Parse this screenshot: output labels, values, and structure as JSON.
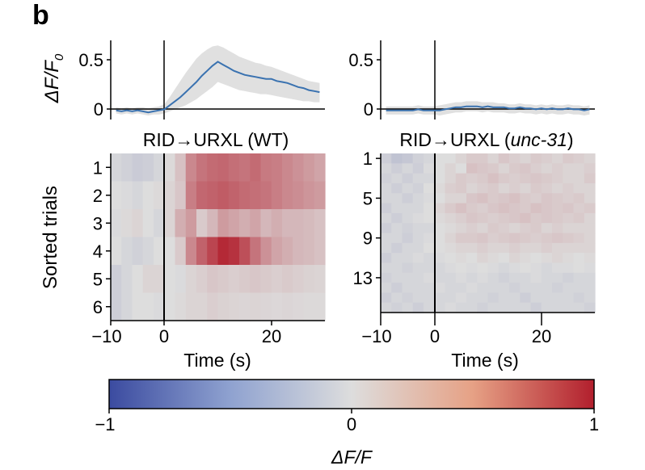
{
  "panel_label": "b",
  "chart_data": [
    {
      "type": "line",
      "panel": "trace-wt",
      "ylabel_main": "ΔF/F",
      "ylabel_sub": "0",
      "yticks": [
        "0",
        "0.5"
      ],
      "ylim": [
        -0.1,
        0.68
      ],
      "xlim": [
        -10,
        30
      ],
      "x": [
        -9,
        -8,
        -7,
        -6,
        -5,
        -4,
        -3,
        -2,
        -1,
        0,
        1,
        2,
        3,
        4,
        5,
        6,
        7,
        8,
        9,
        10,
        11,
        12,
        13,
        14,
        15,
        16,
        17,
        18,
        19,
        20,
        21,
        22,
        23,
        24,
        25,
        26,
        27,
        28,
        29
      ],
      "series": [
        {
          "name": "mean",
          "values": [
            -0.01,
            -0.02,
            -0.01,
            -0.02,
            -0.01,
            -0.02,
            -0.03,
            -0.02,
            -0.01,
            0.0,
            0.04,
            0.08,
            0.12,
            0.17,
            0.22,
            0.27,
            0.33,
            0.38,
            0.43,
            0.47,
            0.44,
            0.41,
            0.38,
            0.36,
            0.34,
            0.33,
            0.32,
            0.31,
            0.3,
            0.3,
            0.28,
            0.27,
            0.26,
            0.24,
            0.22,
            0.21,
            0.19,
            0.18,
            0.17
          ]
        },
        {
          "name": "upper",
          "values": [
            0.02,
            0.01,
            0.02,
            0.01,
            0.02,
            0.02,
            0.01,
            0.02,
            0.03,
            0.05,
            0.12,
            0.2,
            0.28,
            0.36,
            0.43,
            0.5,
            0.55,
            0.59,
            0.62,
            0.63,
            0.61,
            0.58,
            0.55,
            0.52,
            0.5,
            0.48,
            0.46,
            0.45,
            0.43,
            0.42,
            0.4,
            0.38,
            0.36,
            0.34,
            0.32,
            0.3,
            0.28,
            0.27,
            0.26
          ]
        },
        {
          "name": "lower",
          "values": [
            -0.04,
            -0.05,
            -0.04,
            -0.05,
            -0.04,
            -0.05,
            -0.06,
            -0.05,
            -0.05,
            -0.04,
            -0.02,
            0.0,
            0.02,
            0.04,
            0.07,
            0.1,
            0.14,
            0.18,
            0.22,
            0.27,
            0.25,
            0.23,
            0.21,
            0.19,
            0.18,
            0.17,
            0.16,
            0.15,
            0.15,
            0.14,
            0.13,
            0.12,
            0.11,
            0.1,
            0.09,
            0.08,
            0.08,
            0.07,
            0.07
          ]
        }
      ]
    },
    {
      "type": "line",
      "panel": "trace-unc31",
      "yticks": [
        "0",
        "0.5"
      ],
      "ylim": [
        -0.1,
        0.68
      ],
      "xlim": [
        -10,
        30
      ],
      "x": [
        -9,
        -8,
        -7,
        -6,
        -5,
        -4,
        -3,
        -2,
        -1,
        0,
        1,
        2,
        3,
        4,
        5,
        6,
        7,
        8,
        9,
        10,
        11,
        12,
        13,
        14,
        15,
        16,
        17,
        18,
        19,
        20,
        21,
        22,
        23,
        24,
        25,
        26,
        27,
        28,
        29
      ],
      "series": [
        {
          "name": "mean",
          "values": [
            -0.01,
            -0.01,
            -0.01,
            -0.01,
            -0.01,
            -0.01,
            0.0,
            -0.01,
            -0.01,
            -0.01,
            -0.01,
            0.0,
            0.01,
            0.02,
            0.02,
            0.03,
            0.03,
            0.03,
            0.02,
            0.03,
            0.02,
            0.02,
            0.02,
            0.01,
            0.01,
            0.02,
            0.01,
            0.01,
            0.0,
            0.01,
            0.0,
            0.01,
            0.0,
            0.0,
            0.01,
            0.0,
            0.0,
            -0.01,
            0.0
          ]
        },
        {
          "name": "upper",
          "values": [
            0.03,
            0.03,
            0.03,
            0.03,
            0.03,
            0.03,
            0.04,
            0.03,
            0.03,
            0.03,
            0.04,
            0.05,
            0.06,
            0.07,
            0.07,
            0.08,
            0.08,
            0.08,
            0.07,
            0.07,
            0.07,
            0.06,
            0.06,
            0.05,
            0.05,
            0.06,
            0.05,
            0.05,
            0.04,
            0.05,
            0.04,
            0.05,
            0.04,
            0.04,
            0.05,
            0.04,
            0.04,
            0.03,
            0.04
          ]
        },
        {
          "name": "lower",
          "values": [
            -0.05,
            -0.05,
            -0.05,
            -0.05,
            -0.05,
            -0.05,
            -0.04,
            -0.05,
            -0.05,
            -0.05,
            -0.06,
            -0.05,
            -0.04,
            -0.03,
            -0.03,
            -0.02,
            -0.02,
            -0.02,
            -0.03,
            -0.02,
            -0.03,
            -0.03,
            -0.03,
            -0.04,
            -0.04,
            -0.03,
            -0.04,
            -0.04,
            -0.05,
            -0.04,
            -0.05,
            -0.04,
            -0.05,
            -0.05,
            -0.04,
            -0.05,
            -0.05,
            -0.06,
            -0.05
          ]
        }
      ]
    },
    {
      "type": "heatmap",
      "panel": "heatmap-wt",
      "title_prefix": "RID→URXL",
      "title_suffix": " (WT)",
      "ylabel": "Sorted trials",
      "row_labels": [
        "1",
        "2",
        "3",
        "4",
        "5",
        "6"
      ],
      "xlim": [
        -10,
        30
      ],
      "xlabel": "Time (s)",
      "xticks": [
        "−10",
        "0",
        "20"
      ],
      "col_x": [
        -9,
        -7,
        -5,
        -3,
        -1,
        1,
        3,
        5,
        7,
        9,
        11,
        13,
        15,
        17,
        19,
        21,
        23,
        25,
        27,
        29
      ],
      "rows": [
        [
          -0.05,
          -0.08,
          -0.12,
          -0.1,
          -0.05,
          0.02,
          0.15,
          0.45,
          0.55,
          0.6,
          0.62,
          0.58,
          0.55,
          0.6,
          0.52,
          0.5,
          0.45,
          0.4,
          0.35,
          0.3
        ],
        [
          0.0,
          -0.02,
          -0.05,
          0.0,
          0.02,
          0.05,
          0.12,
          0.5,
          0.62,
          0.65,
          0.68,
          0.64,
          0.6,
          0.58,
          0.55,
          0.5,
          0.45,
          0.42,
          0.38,
          0.35
        ],
        [
          -0.02,
          0.02,
          0.05,
          0.0,
          -0.05,
          0.05,
          0.25,
          0.35,
          0.1,
          0.2,
          0.35,
          0.3,
          0.25,
          0.3,
          0.2,
          0.25,
          0.2,
          0.2,
          0.18,
          0.15
        ],
        [
          0.0,
          -0.05,
          -0.08,
          -0.05,
          0.0,
          0.0,
          0.1,
          0.45,
          0.65,
          0.8,
          0.95,
          0.9,
          0.75,
          0.55,
          0.4,
          0.3,
          0.25,
          0.2,
          0.18,
          0.15
        ],
        [
          -0.1,
          -0.05,
          0.0,
          0.05,
          0.05,
          0.0,
          -0.02,
          0.05,
          0.08,
          0.12,
          0.1,
          0.08,
          0.1,
          0.12,
          0.1,
          0.08,
          0.1,
          0.08,
          0.06,
          0.05
        ],
        [
          -0.1,
          -0.05,
          0.0,
          0.0,
          -0.02,
          0.0,
          0.02,
          0.05,
          0.05,
          0.08,
          0.06,
          0.05,
          0.04,
          0.05,
          0.04,
          0.03,
          0.04,
          0.03,
          0.02,
          0.02
        ]
      ]
    },
    {
      "type": "heatmap",
      "panel": "heatmap-unc31",
      "title_prefix": "RID→URXL (",
      "title_italic": "unc-31",
      "title_suffix": ")",
      "row_tick_labels": [
        "1",
        "5",
        "9",
        "13"
      ],
      "row_tick_indices": [
        1,
        5,
        9,
        13
      ],
      "xlim": [
        -10,
        30
      ],
      "xlabel": "Time (s)",
      "xticks": [
        "−10",
        "0",
        "20"
      ],
      "col_x": [
        -9,
        -7,
        -5,
        -3,
        -1,
        1,
        3,
        5,
        7,
        9,
        11,
        13,
        15,
        17,
        19,
        21,
        23,
        25,
        27,
        29
      ],
      "rows": [
        [
          -0.1,
          -0.18,
          -0.15,
          -0.08,
          -0.05,
          0.0,
          0.0,
          0.05,
          0.1,
          0.1,
          0.05,
          0.12,
          0.08,
          0.05,
          0.1,
          0.08,
          0.05,
          0.1,
          0.08,
          0.05
        ],
        [
          -0.05,
          -0.1,
          -0.05,
          -0.1,
          -0.02,
          0.0,
          0.05,
          0.0,
          0.15,
          0.12,
          0.1,
          0.05,
          0.1,
          0.12,
          0.08,
          0.05,
          0.08,
          0.05,
          0.05,
          0.08
        ],
        [
          -0.08,
          -0.05,
          -0.1,
          -0.05,
          -0.05,
          0.0,
          0.05,
          0.1,
          0.08,
          0.1,
          0.15,
          0.1,
          0.08,
          0.1,
          0.12,
          0.1,
          0.08,
          0.05,
          0.05,
          0.1
        ],
        [
          -0.05,
          -0.1,
          -0.05,
          -0.08,
          0.0,
          0.02,
          0.08,
          0.1,
          0.05,
          0.08,
          0.1,
          0.05,
          0.08,
          0.05,
          0.1,
          0.08,
          0.05,
          0.08,
          0.05,
          0.05
        ],
        [
          -0.05,
          -0.05,
          -0.1,
          -0.05,
          -0.02,
          0.0,
          0.05,
          0.05,
          0.12,
          0.15,
          0.1,
          0.12,
          0.15,
          0.1,
          0.08,
          0.12,
          0.1,
          0.08,
          0.1,
          0.05
        ],
        [
          -0.1,
          -0.05,
          -0.05,
          -0.05,
          0.0,
          0.05,
          0.1,
          0.15,
          0.1,
          0.08,
          0.12,
          0.15,
          0.12,
          0.1,
          0.15,
          0.12,
          0.1,
          0.12,
          0.08,
          0.1
        ],
        [
          -0.05,
          -0.1,
          -0.05,
          -0.02,
          0.0,
          0.02,
          0.05,
          0.08,
          0.12,
          0.1,
          0.08,
          0.1,
          0.12,
          0.15,
          0.1,
          0.12,
          0.1,
          0.08,
          0.1,
          0.05
        ],
        [
          -0.1,
          -0.05,
          -0.08,
          -0.05,
          -0.05,
          0.0,
          0.02,
          0.05,
          0.08,
          0.05,
          0.1,
          0.08,
          0.05,
          0.08,
          0.1,
          0.05,
          0.08,
          0.05,
          0.05,
          0.05
        ],
        [
          -0.05,
          -0.05,
          -0.1,
          -0.05,
          -0.02,
          0.0,
          0.05,
          0.1,
          0.1,
          0.12,
          0.08,
          0.1,
          0.12,
          0.1,
          0.08,
          0.1,
          0.12,
          0.1,
          0.08,
          0.05
        ],
        [
          -0.05,
          -0.1,
          -0.05,
          -0.05,
          0.0,
          0.0,
          0.02,
          0.05,
          0.05,
          0.08,
          0.05,
          0.05,
          0.08,
          0.05,
          0.05,
          0.08,
          0.05,
          0.05,
          0.05,
          0.05
        ],
        [
          -0.1,
          -0.05,
          -0.05,
          -0.02,
          -0.05,
          -0.02,
          0.0,
          0.02,
          0.0,
          0.05,
          0.02,
          0.0,
          0.05,
          0.02,
          0.0,
          0.02,
          0.05,
          0.02,
          0.0,
          0.02
        ],
        [
          -0.05,
          -0.05,
          -0.08,
          -0.05,
          -0.05,
          -0.05,
          -0.02,
          0.0,
          -0.02,
          0.0,
          -0.02,
          -0.05,
          -0.02,
          0.0,
          -0.02,
          -0.05,
          -0.02,
          -0.02,
          0.0,
          -0.02
        ],
        [
          -0.08,
          -0.05,
          -0.05,
          -0.05,
          -0.02,
          -0.05,
          -0.05,
          -0.02,
          -0.05,
          -0.02,
          -0.05,
          -0.08,
          -0.05,
          -0.05,
          -0.02,
          -0.05,
          -0.05,
          -0.08,
          -0.05,
          -0.05
        ],
        [
          -0.05,
          -0.1,
          -0.05,
          -0.05,
          -0.05,
          -0.02,
          -0.05,
          -0.05,
          -0.02,
          -0.05,
          -0.05,
          -0.05,
          -0.08,
          -0.05,
          -0.05,
          -0.05,
          -0.08,
          -0.05,
          -0.05,
          -0.05
        ],
        [
          -0.1,
          -0.05,
          -0.08,
          -0.05,
          -0.05,
          -0.05,
          -0.05,
          -0.02,
          -0.05,
          -0.05,
          -0.08,
          -0.05,
          -0.05,
          -0.1,
          -0.05,
          -0.05,
          -0.05,
          -0.05,
          -0.08,
          -0.05
        ],
        [
          -0.05,
          -0.08,
          -0.05,
          -0.1,
          -0.05,
          -0.05,
          -0.02,
          -0.05,
          -0.05,
          -0.08,
          -0.05,
          -0.05,
          -0.05,
          -0.05,
          -0.1,
          -0.05,
          -0.05,
          -0.05,
          -0.05,
          -0.08
        ]
      ]
    }
  ],
  "colorbar": {
    "range": [
      -1,
      1
    ],
    "tick_labels": [
      "−1",
      "0",
      "1"
    ],
    "label": "ΔF/F",
    "colors": {
      "low": "#3b4ba0",
      "mid": "#dddddd",
      "high": "#b21f2d"
    }
  },
  "colors": {
    "line": "#3a72b0",
    "band": "#e0e0e0",
    "axis": "#000000"
  }
}
